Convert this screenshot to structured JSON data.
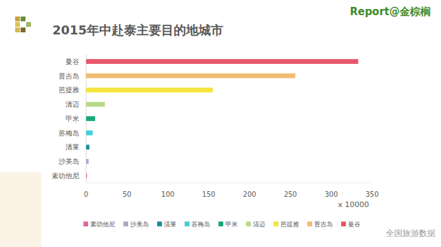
{
  "chart_data": {
    "type": "bar",
    "orientation": "horizontal",
    "title": "2015年中赴泰主要目的地城市",
    "x_label": "x 10000",
    "categories": [
      "曼谷",
      "普吉岛",
      "芭提雅",
      "清迈",
      "甲米",
      "苏梅岛",
      "清莱",
      "沙美岛",
      "素叻他尼"
    ],
    "values": [
      333,
      256,
      155,
      23,
      11,
      8,
      4,
      3,
      1
    ],
    "colors": [
      "#e8566c",
      "#f0bb72",
      "#f4e53c",
      "#b9da8c",
      "#1aa97b",
      "#40cfd8",
      "#1b8d9c",
      "#a9a9c6",
      "#d86aa9"
    ],
    "xlim": [
      0,
      350
    ],
    "xticks": [
      0,
      50,
      100,
      150,
      200,
      250,
      300,
      350
    ],
    "grid": false,
    "legend": "bottom"
  },
  "logo": "Report@金棕榈",
  "watermark": "全国旅游数据"
}
